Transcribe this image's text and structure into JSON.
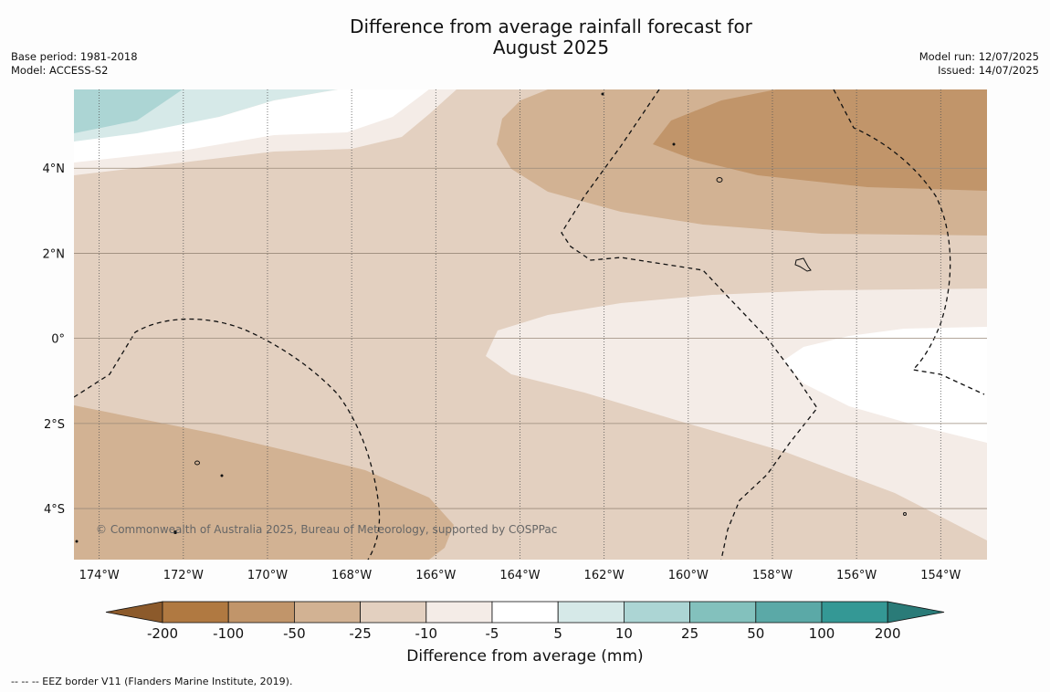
{
  "title": [
    "Difference from average rainfall forecast for",
    "August 2025"
  ],
  "meta_left": [
    "Base period: 1981-2018",
    "Model: ACCESS-S2"
  ],
  "meta_right": [
    "Model run: 12/07/2025",
    "Issued: 14/07/2025"
  ],
  "map": {
    "lon_range": [
      -174.6,
      -152.9
    ],
    "lat_range": [
      -5.2,
      5.85
    ],
    "lon_ticks": [
      -174,
      -172,
      -170,
      -168,
      -166,
      -164,
      -162,
      -160,
      -158,
      -156,
      -154
    ],
    "lon_tick_labels": [
      "174°W",
      "172°W",
      "170°W",
      "168°W",
      "166°W",
      "164°W",
      "162°W",
      "160°W",
      "158°W",
      "156°W",
      "154°W"
    ],
    "lat_ticks": [
      4,
      2,
      0,
      -2,
      -4
    ],
    "lat_tick_labels": [
      "4°N",
      "2°N",
      "0°",
      "2°S",
      "4°S"
    ],
    "copyright": "© Commonwealth of Australia 2025, Bureau of Meteorology, supported by COSPPac"
  },
  "colorbar": {
    "boundaries": [
      "-200",
      "-100",
      "-50",
      "-25",
      "-10",
      "-5",
      "5",
      "10",
      "25",
      "50",
      "100",
      "200"
    ],
    "colors": [
      "#8c5a2b",
      "#b07941",
      "#c1956a",
      "#d2b293",
      "#e3d0c0",
      "#f4ece7",
      "#ffffff",
      "#d6e9e8",
      "#acd5d4",
      "#83c1bd",
      "#5ba9a7",
      "#349895",
      "#2a7b78"
    ],
    "label": "Difference from average (mm)"
  },
  "footer": "--  --  -- EEZ border V11 (Flanders Marine Institute, 2019)."
}
